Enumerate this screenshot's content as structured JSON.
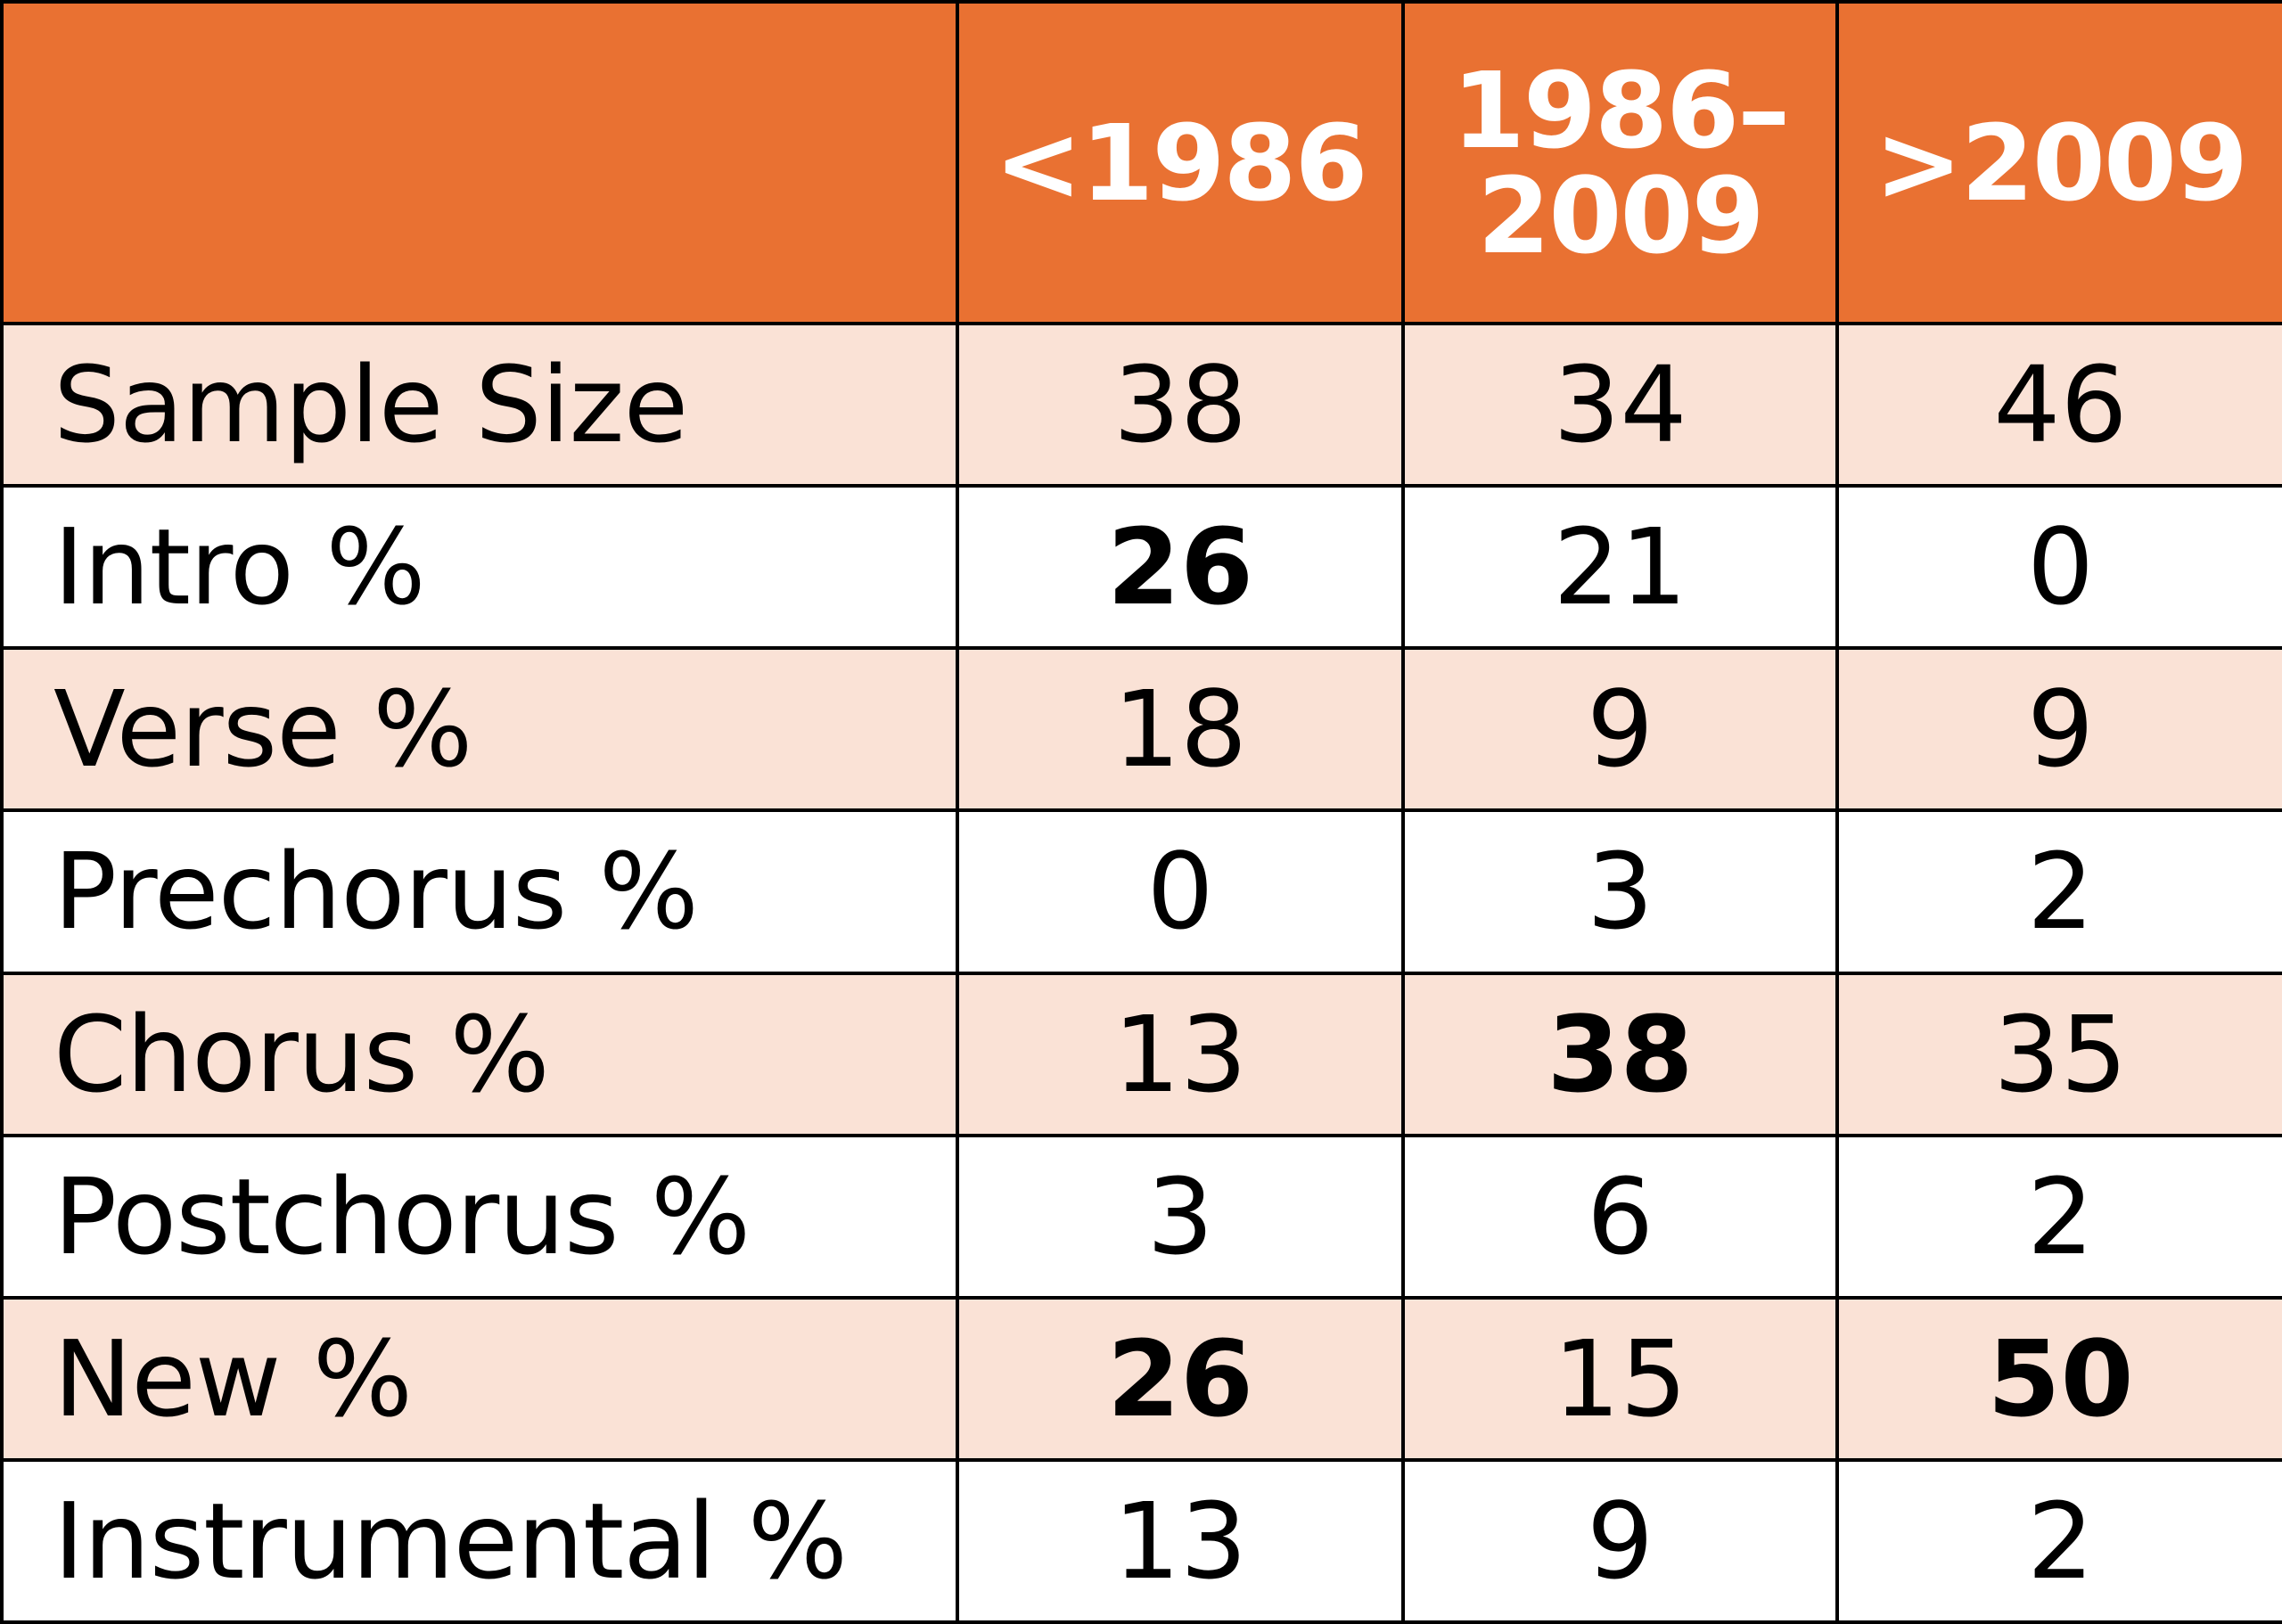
{
  "table": {
    "header": {
      "corner": "",
      "columns": [
        {
          "lines": [
            "<1986"
          ]
        },
        {
          "lines": [
            "1986–",
            "2009"
          ]
        },
        {
          "lines": [
            ">2009"
          ]
        }
      ]
    },
    "rows": [
      {
        "label": "Sample Size",
        "values": [
          "38",
          "34",
          "46"
        ],
        "bold": [
          false,
          false,
          false
        ]
      },
      {
        "label": "Intro %",
        "values": [
          "26",
          "21",
          "0"
        ],
        "bold": [
          true,
          false,
          false
        ]
      },
      {
        "label": "Verse %",
        "values": [
          "18",
          "9",
          "9"
        ],
        "bold": [
          false,
          false,
          false
        ]
      },
      {
        "label": "Prechorus %",
        "values": [
          "0",
          "3",
          "2"
        ],
        "bold": [
          false,
          false,
          false
        ]
      },
      {
        "label": "Chorus %",
        "values": [
          "13",
          "38",
          "35"
        ],
        "bold": [
          false,
          true,
          false
        ]
      },
      {
        "label": "Postchorus %",
        "values": [
          "3",
          "6",
          "2"
        ],
        "bold": [
          false,
          false,
          false
        ]
      },
      {
        "label": "New %",
        "values": [
          "26",
          "15",
          "50"
        ],
        "bold": [
          true,
          false,
          true
        ]
      },
      {
        "label": "Instrumental %",
        "values": [
          "13",
          "9",
          "2"
        ],
        "bold": [
          false,
          false,
          false
        ]
      }
    ]
  },
  "colors": {
    "header_bg": "#e97132",
    "header_text": "#ffffff",
    "shaded_row_bg": "#fae2d6",
    "plain_row_bg": "#ffffff",
    "border": "#000000"
  }
}
